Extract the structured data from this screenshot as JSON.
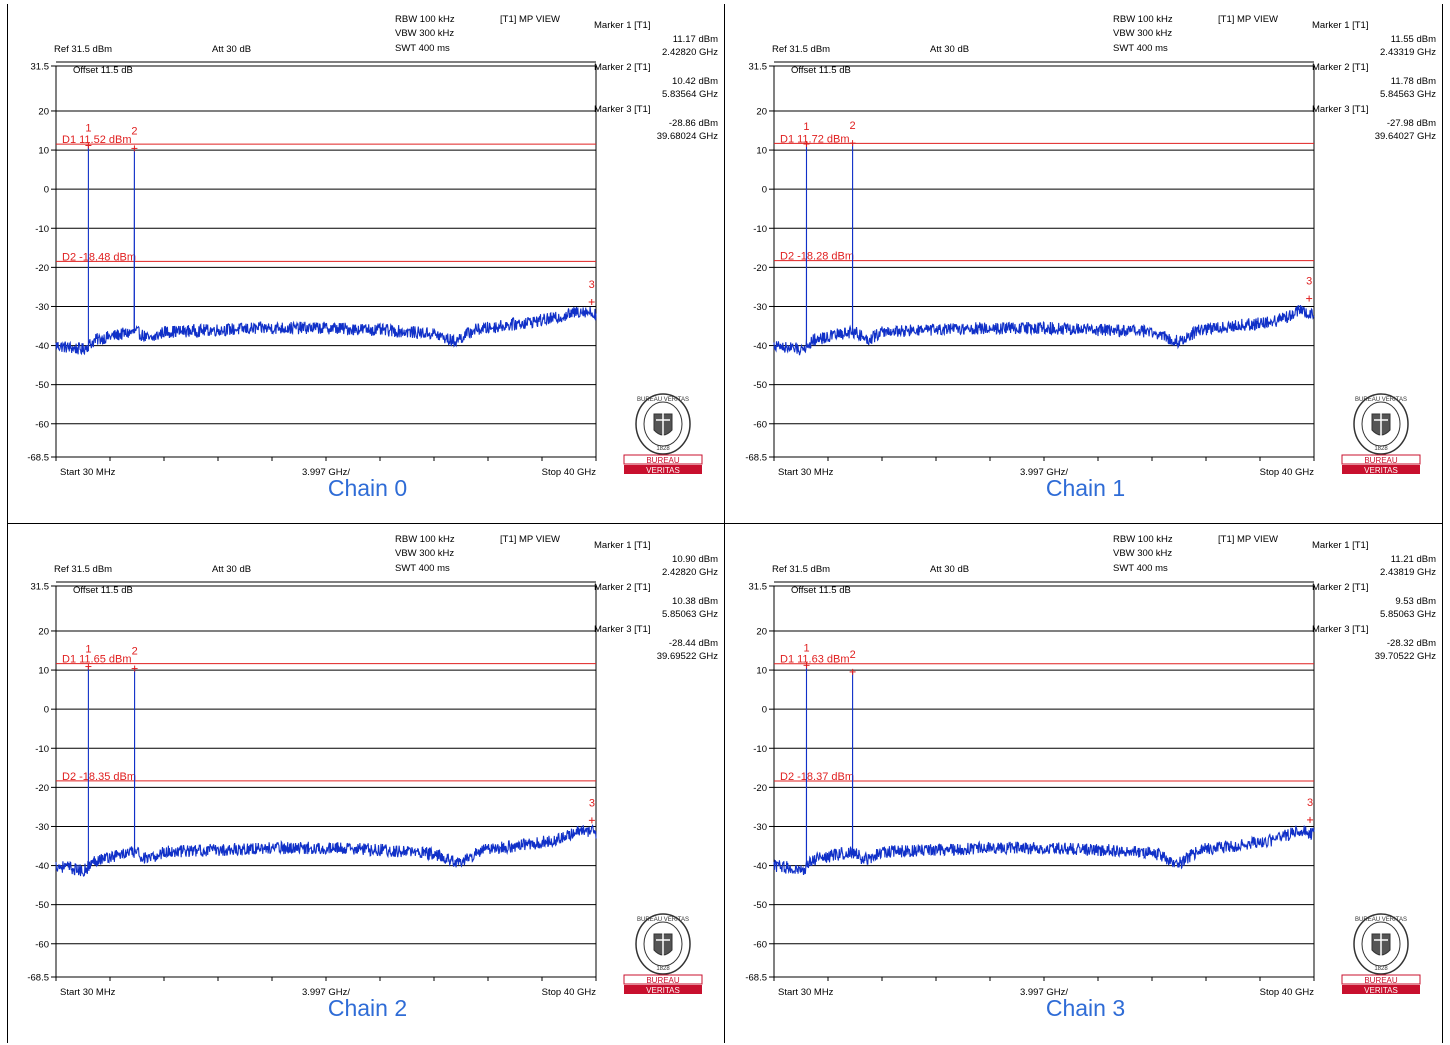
{
  "colors": {
    "trace": "#1030c8",
    "limit": "#e02020",
    "marker": "#e02020",
    "caption": "#2f6cd6",
    "logo_red": "#c8102e",
    "grid": "#000000"
  },
  "chart_data": [
    {
      "type": "line",
      "title": "Chain 0",
      "info": {
        "rbw": "RBW 100 kHz",
        "vbw": "VBW 300 kHz",
        "swt": "SWT 400 ms",
        "view": "[T1] MP VIEW",
        "ref": "Ref 31.5 dBm",
        "att": "Att  30 dB",
        "offset": "Offset 11.5 dB"
      },
      "x_start_label": "Start 30 MHz",
      "x_center_label": "3.997 GHz/",
      "x_stop_label": "Stop 40 GHz",
      "xlim_ghz": [
        0.03,
        40
      ],
      "ylim": [
        -68.5,
        31.5
      ],
      "yticks": [
        "31.5",
        "20",
        "10",
        "0",
        "-10",
        "-20",
        "-30",
        "-40",
        "-50",
        "-60",
        "-68.5"
      ],
      "ytick_values": [
        31.5,
        20,
        10,
        0,
        -10,
        -20,
        -30,
        -40,
        -50,
        -60,
        -68.5
      ],
      "d1": {
        "label": "D1 11.52 dBm",
        "value": 11.52
      },
      "d2": {
        "label": "D2 -18.48 dBm",
        "value": -18.48
      },
      "markers": [
        {
          "name": "Marker 1 [T1]",
          "level": "11.17 dBm",
          "freq": "2.42820 GHz",
          "id": "1",
          "x": 2.4282,
          "y": 11.17
        },
        {
          "name": "Marker 2 [T1]",
          "level": "10.42 dBm",
          "freq": "5.83564 GHz",
          "id": "2",
          "x": 5.83564,
          "y": 10.42
        },
        {
          "name": "Marker 3 [T1]",
          "level": "-28.86 dBm",
          "freq": "39.68024 GHz",
          "id": "3",
          "x": 39.68024,
          "y": -28.86
        }
      ],
      "noise_profile": [
        [
          0.03,
          -40
        ],
        [
          1,
          -40.5
        ],
        [
          2.0,
          -41
        ],
        [
          3,
          -38.5
        ],
        [
          5,
          -37
        ],
        [
          6,
          -36.5
        ],
        [
          6.5,
          -37.5
        ],
        [
          7,
          -38.5
        ],
        [
          8,
          -36.5
        ],
        [
          12,
          -36
        ],
        [
          16,
          -35.5
        ],
        [
          20,
          -35.5
        ],
        [
          24,
          -36
        ],
        [
          28,
          -37
        ],
        [
          29.5,
          -39
        ],
        [
          31,
          -36
        ],
        [
          34,
          -34.5
        ],
        [
          37,
          -33
        ],
        [
          39,
          -31
        ],
        [
          40,
          -32
        ]
      ]
    },
    {
      "type": "line",
      "title": "Chain 1",
      "info": {
        "rbw": "RBW 100 kHz",
        "vbw": "VBW 300 kHz",
        "swt": "SWT 400 ms",
        "view": "[T1] MP VIEW",
        "ref": "Ref 31.5 dBm",
        "att": "Att  30 dB",
        "offset": "Offset 11.5 dB"
      },
      "x_start_label": "Start 30 MHz",
      "x_center_label": "3.997 GHz/",
      "x_stop_label": "Stop 40 GHz",
      "xlim_ghz": [
        0.03,
        40
      ],
      "ylim": [
        -68.5,
        31.5
      ],
      "yticks": [
        "31.5",
        "20",
        "10",
        "0",
        "-10",
        "-20",
        "-30",
        "-40",
        "-50",
        "-60",
        "-68.5"
      ],
      "ytick_values": [
        31.5,
        20,
        10,
        0,
        -10,
        -20,
        -30,
        -40,
        -50,
        -60,
        -68.5
      ],
      "d1": {
        "label": "D1 11.72 dBm",
        "value": 11.72
      },
      "d2": {
        "label": "D2 -18.28 dBm",
        "value": -18.28
      },
      "markers": [
        {
          "name": "Marker 1 [T1]",
          "level": "11.55 dBm",
          "freq": "2.43319 GHz",
          "id": "1",
          "x": 2.43319,
          "y": 11.55
        },
        {
          "name": "Marker 2 [T1]",
          "level": "11.78 dBm",
          "freq": "5.84563 GHz",
          "id": "2",
          "x": 5.84563,
          "y": 11.78
        },
        {
          "name": "Marker 3 [T1]",
          "level": "-27.98 dBm",
          "freq": "39.64027 GHz",
          "id": "3",
          "x": 39.64027,
          "y": -27.98
        }
      ],
      "noise_profile": [
        [
          0.03,
          -40
        ],
        [
          1,
          -40.5
        ],
        [
          2.0,
          -41
        ],
        [
          3,
          -38.5
        ],
        [
          5,
          -37
        ],
        [
          6,
          -36.5
        ],
        [
          6.5,
          -37.5
        ],
        [
          7,
          -38.5
        ],
        [
          8,
          -36.5
        ],
        [
          12,
          -36
        ],
        [
          16,
          -35.5
        ],
        [
          20,
          -35.5
        ],
        [
          24,
          -36
        ],
        [
          28,
          -36.5
        ],
        [
          30,
          -39
        ],
        [
          31.5,
          -36
        ],
        [
          34,
          -35
        ],
        [
          37,
          -34
        ],
        [
          39,
          -31
        ],
        [
          40,
          -32
        ]
      ]
    },
    {
      "type": "line",
      "title": "Chain 2",
      "info": {
        "rbw": "RBW 100 kHz",
        "vbw": "VBW 300 kHz",
        "swt": "SWT 400 ms",
        "view": "[T1] MP VIEW",
        "ref": "Ref 31.5 dBm",
        "att": "Att  30 dB",
        "offset": "Offset 11.5 dB"
      },
      "x_start_label": "Start 30 MHz",
      "x_center_label": "3.997 GHz/",
      "x_stop_label": "Stop 40 GHz",
      "xlim_ghz": [
        0.03,
        40
      ],
      "ylim": [
        -68.5,
        31.5
      ],
      "yticks": [
        "31.5",
        "20",
        "10",
        "0",
        "-10",
        "-20",
        "-30",
        "-40",
        "-50",
        "-60",
        "-68.5"
      ],
      "ytick_values": [
        31.5,
        20,
        10,
        0,
        -10,
        -20,
        -30,
        -40,
        -50,
        -60,
        -68.5
      ],
      "d1": {
        "label": "D1 11.65 dBm",
        "value": 11.65
      },
      "d2": {
        "label": "D2 -18.35 dBm",
        "value": -18.35
      },
      "markers": [
        {
          "name": "Marker 1 [T1]",
          "level": "10.90 dBm",
          "freq": "2.42820 GHz",
          "id": "1",
          "x": 2.4282,
          "y": 10.9
        },
        {
          "name": "Marker 2 [T1]",
          "level": "10.38 dBm",
          "freq": "5.85063 GHz",
          "id": "2",
          "x": 5.85063,
          "y": 10.38
        },
        {
          "name": "Marker 3 [T1]",
          "level": "-28.44 dBm",
          "freq": "39.69522 GHz",
          "id": "3",
          "x": 39.69522,
          "y": -28.44
        }
      ],
      "noise_profile": [
        [
          0.03,
          -40
        ],
        [
          1,
          -40.5
        ],
        [
          2.0,
          -41.5
        ],
        [
          3,
          -38.5
        ],
        [
          5,
          -37
        ],
        [
          6,
          -36.5
        ],
        [
          6.5,
          -38
        ],
        [
          7,
          -38.5
        ],
        [
          8,
          -36.5
        ],
        [
          12,
          -36
        ],
        [
          16,
          -35.5
        ],
        [
          20,
          -35.5
        ],
        [
          24,
          -36
        ],
        [
          28,
          -37
        ],
        [
          30,
          -39.5
        ],
        [
          31.5,
          -36
        ],
        [
          34,
          -35
        ],
        [
          37,
          -33.5
        ],
        [
          39,
          -31
        ],
        [
          40,
          -31.5
        ]
      ]
    },
    {
      "type": "line",
      "title": "Chain 3",
      "info": {
        "rbw": "RBW 100 kHz",
        "vbw": "VBW 300 kHz",
        "swt": "SWT 400 ms",
        "view": "[T1] MP VIEW",
        "ref": "Ref 31.5 dBm",
        "att": "Att  30 dB",
        "offset": "Offset 11.5 dB"
      },
      "x_start_label": "Start 30 MHz",
      "x_center_label": "3.997 GHz/",
      "x_stop_label": "Stop 40 GHz",
      "xlim_ghz": [
        0.03,
        40
      ],
      "ylim": [
        -68.5,
        31.5
      ],
      "yticks": [
        "31.5",
        "20",
        "10",
        "0",
        "-10",
        "-20",
        "-30",
        "-40",
        "-50",
        "-60",
        "-68.5"
      ],
      "ytick_values": [
        31.5,
        20,
        10,
        0,
        -10,
        -20,
        -30,
        -40,
        -50,
        -60,
        -68.5
      ],
      "d1": {
        "label": "D1 11.63 dBm",
        "value": 11.63
      },
      "d2": {
        "label": "D2 -18.37 dBm",
        "value": -18.37
      },
      "markers": [
        {
          "name": "Marker 1 [T1]",
          "level": "11.21 dBm",
          "freq": "2.43819 GHz",
          "id": "1",
          "x": 2.43819,
          "y": 11.21
        },
        {
          "name": "Marker 2 [T1]",
          "level": "9.53 dBm",
          "freq": "5.85063 GHz",
          "id": "2",
          "x": 5.85063,
          "y": 9.53
        },
        {
          "name": "Marker 3 [T1]",
          "level": "-28.32 dBm",
          "freq": "39.70522 GHz",
          "id": "3",
          "x": 39.70522,
          "y": -28.32
        }
      ],
      "noise_profile": [
        [
          0.03,
          -40
        ],
        [
          1,
          -40.5
        ],
        [
          2.0,
          -41.5
        ],
        [
          3,
          -38.5
        ],
        [
          5,
          -37
        ],
        [
          6,
          -36.5
        ],
        [
          6.5,
          -38
        ],
        [
          7,
          -38.5
        ],
        [
          8,
          -36.5
        ],
        [
          12,
          -36
        ],
        [
          16,
          -35.5
        ],
        [
          20,
          -35.5
        ],
        [
          24,
          -36
        ],
        [
          28,
          -36.5
        ],
        [
          30,
          -39.5
        ],
        [
          31.5,
          -36
        ],
        [
          34,
          -35
        ],
        [
          37,
          -33.5
        ],
        [
          39,
          -31
        ],
        [
          40,
          -32
        ]
      ]
    }
  ],
  "logo": {
    "top_text": "BUREAU VERITAS",
    "year": "1828",
    "band1": "BUREAU",
    "band2": "VERITAS"
  }
}
